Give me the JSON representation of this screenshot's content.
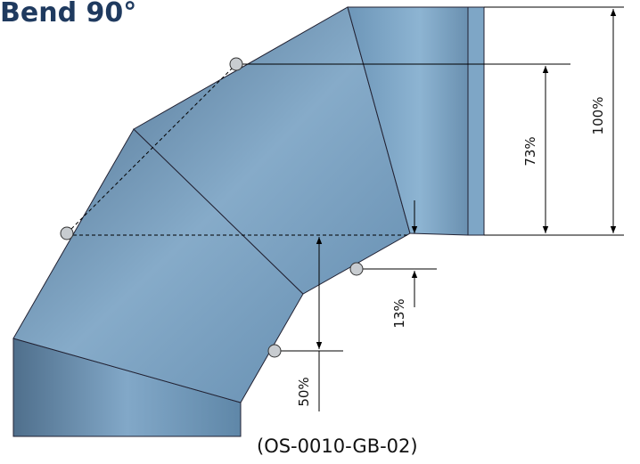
{
  "title": "Bend 90°",
  "dimensions": [
    "100%",
    "73%",
    "13%",
    "50%"
  ],
  "code": "(OS-0010-GB-02)"
}
